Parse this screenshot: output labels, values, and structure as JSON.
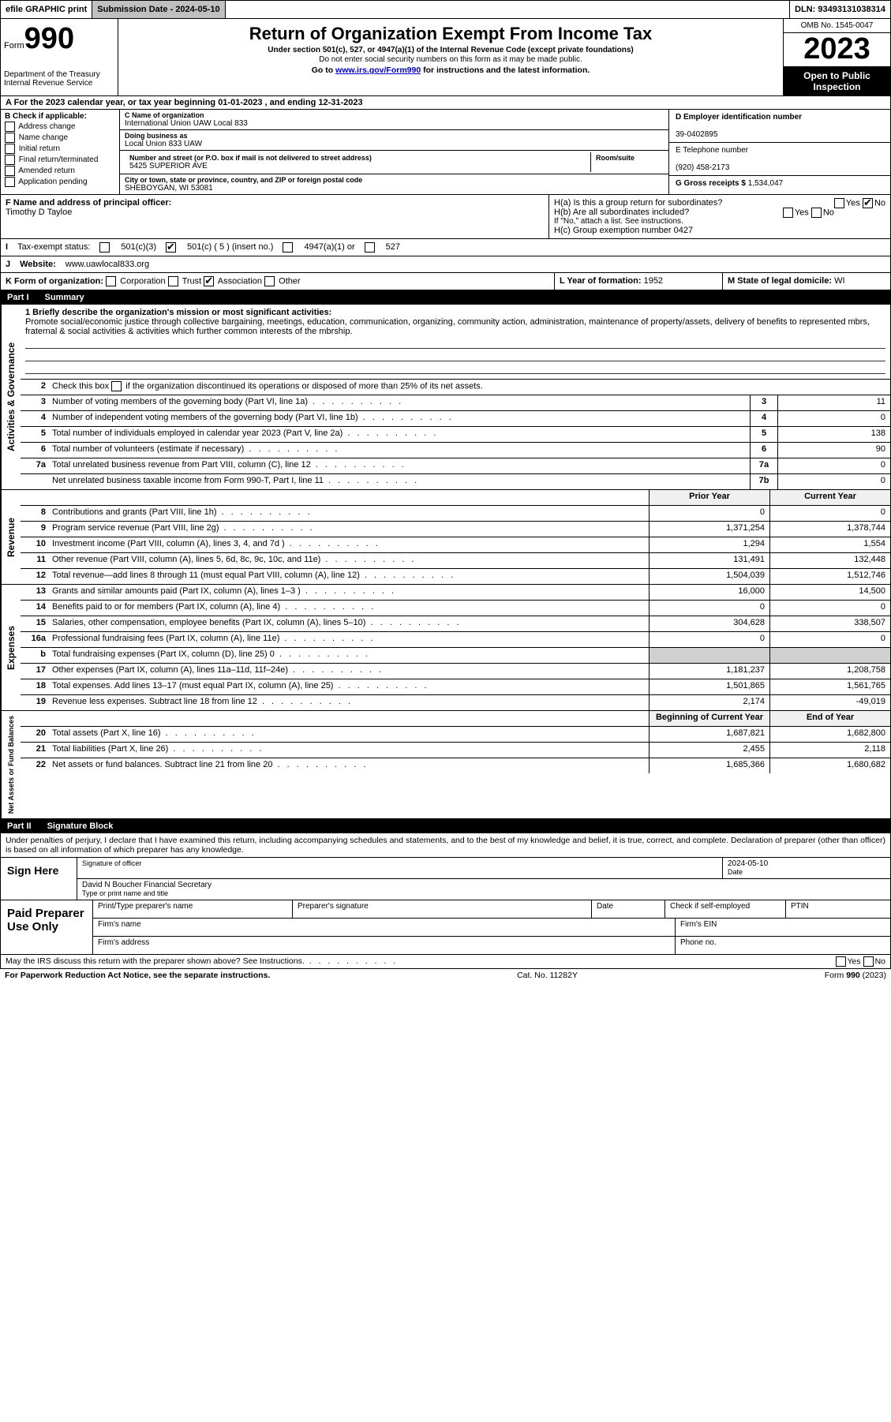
{
  "topbar": {
    "efile": "efile GRAPHIC print",
    "submission_label": "Submission Date - 2024-05-10",
    "dln": "DLN: 93493131038314"
  },
  "header": {
    "form_label": "Form",
    "form_number": "990",
    "title": "Return of Organization Exempt From Income Tax",
    "sub1": "Under section 501(c), 527, or 4947(a)(1) of the Internal Revenue Code (except private foundations)",
    "sub2": "Do not enter social security numbers on this form as it may be made public.",
    "sub3_pre": "Go to ",
    "sub3_link": "www.irs.gov/Form990",
    "sub3_post": " for instructions and the latest information.",
    "dept": "Department of the Treasury\nInternal Revenue Service",
    "omb": "OMB No. 1545-0047",
    "year": "2023",
    "inspection": "Open to Public Inspection"
  },
  "lineA": "A For the 2023 calendar year, or tax year beginning 01-01-2023   , and ending 12-31-2023",
  "boxB": {
    "title": "B Check if applicable:",
    "items": [
      "Address change",
      "Name change",
      "Initial return",
      "Final return/terminated",
      "Amended return",
      "Application pending"
    ]
  },
  "boxC": {
    "name_label": "C Name of organization",
    "name": "International Union UAW Local 833",
    "dba_label": "Doing business as",
    "dba": "Local Union 833 UAW",
    "street_label": "Number and street (or P.O. box if mail is not delivered to street address)",
    "room_label": "Room/suite",
    "street": "5425 SUPERIOR AVE",
    "city_label": "City or town, state or province, country, and ZIP or foreign postal code",
    "city": "SHEBOYGAN, WI  53081"
  },
  "boxD": {
    "ein_label": "D Employer identification number",
    "ein": "39-0402895",
    "phone_label": "E Telephone number",
    "phone": "(920) 458-2173",
    "gross_label": "G Gross receipts $",
    "gross": "1,534,047"
  },
  "boxF": {
    "label": "F Name and address of principal officer:",
    "name": "Timothy D Tayloe"
  },
  "boxH": {
    "a": "H(a)  Is this a group return for subordinates?",
    "b": "H(b)  Are all subordinates included?",
    "b_note": "If \"No,\" attach a list. See instructions.",
    "c_label": "H(c)  Group exemption number ",
    "c_val": "0427",
    "yes": "Yes",
    "no": "No"
  },
  "boxI": {
    "label": "Tax-exempt status:",
    "opts": [
      "501(c)(3)",
      "501(c) ( 5 ) (insert no.)",
      "4947(a)(1) or",
      "527"
    ]
  },
  "boxJ": {
    "label": "Website:",
    "value": "www.uawlocal833.org"
  },
  "boxK": {
    "label": "K Form of organization:",
    "opts": [
      "Corporation",
      "Trust",
      "Association",
      "Other"
    ]
  },
  "boxL": {
    "label": "L Year of formation:",
    "value": "1952"
  },
  "boxM": {
    "label": "M State of legal domicile:",
    "value": "WI"
  },
  "partI": {
    "num": "Part I",
    "title": "Summary"
  },
  "summary": {
    "mission_label": "1   Briefly describe the organization's mission or most significant activities:",
    "mission": "Promote social/economic justice through collective bargaining, meetings, education, communication, organizing, community action, administration, maintenance of property/assets, delivery of benefits to represented mbrs, fraternal & social activities & activities which further common interests of the mbrship.",
    "line2": "Check this box       if the organization discontinued its operations or disposed of more than 25% of its net assets.",
    "lines_simple": [
      {
        "n": "3",
        "d": "Number of voting members of the governing body (Part VI, line 1a)",
        "box": "3",
        "v": "11"
      },
      {
        "n": "4",
        "d": "Number of independent voting members of the governing body (Part VI, line 1b)",
        "box": "4",
        "v": "0"
      },
      {
        "n": "5",
        "d": "Total number of individuals employed in calendar year 2023 (Part V, line 2a)",
        "box": "5",
        "v": "138"
      },
      {
        "n": "6",
        "d": "Total number of volunteers (estimate if necessary)",
        "box": "6",
        "v": "90"
      },
      {
        "n": "7a",
        "d": "Total unrelated business revenue from Part VIII, column (C), line 12",
        "box": "7a",
        "v": "0"
      },
      {
        "n": "",
        "d": "Net unrelated business taxable income from Form 990-T, Part I, line 11",
        "box": "7b",
        "v": "0"
      }
    ],
    "col_prior": "Prior Year",
    "col_current": "Current Year",
    "revenue": [
      {
        "n": "8",
        "d": "Contributions and grants (Part VIII, line 1h)",
        "p": "0",
        "c": "0"
      },
      {
        "n": "9",
        "d": "Program service revenue (Part VIII, line 2g)",
        "p": "1,371,254",
        "c": "1,378,744"
      },
      {
        "n": "10",
        "d": "Investment income (Part VIII, column (A), lines 3, 4, and 7d )",
        "p": "1,294",
        "c": "1,554"
      },
      {
        "n": "11",
        "d": "Other revenue (Part VIII, column (A), lines 5, 6d, 8c, 9c, 10c, and 11e)",
        "p": "131,491",
        "c": "132,448"
      },
      {
        "n": "12",
        "d": "Total revenue—add lines 8 through 11 (must equal Part VIII, column (A), line 12)",
        "p": "1,504,039",
        "c": "1,512,746"
      }
    ],
    "expenses": [
      {
        "n": "13",
        "d": "Grants and similar amounts paid (Part IX, column (A), lines 1–3 )",
        "p": "16,000",
        "c": "14,500"
      },
      {
        "n": "14",
        "d": "Benefits paid to or for members (Part IX, column (A), line 4)",
        "p": "0",
        "c": "0"
      },
      {
        "n": "15",
        "d": "Salaries, other compensation, employee benefits (Part IX, column (A), lines 5–10)",
        "p": "304,628",
        "c": "338,507"
      },
      {
        "n": "16a",
        "d": "Professional fundraising fees (Part IX, column (A), line 11e)",
        "p": "0",
        "c": "0"
      },
      {
        "n": "b",
        "d": "Total fundraising expenses (Part IX, column (D), line 25) 0",
        "p": "",
        "c": "",
        "shaded": true
      },
      {
        "n": "17",
        "d": "Other expenses (Part IX, column (A), lines 11a–11d, 11f–24e)",
        "p": "1,181,237",
        "c": "1,208,758"
      },
      {
        "n": "18",
        "d": "Total expenses. Add lines 13–17 (must equal Part IX, column (A), line 25)",
        "p": "1,501,865",
        "c": "1,561,765"
      },
      {
        "n": "19",
        "d": "Revenue less expenses. Subtract line 18 from line 12",
        "p": "2,174",
        "c": "-49,019"
      }
    ],
    "col_begin": "Beginning of Current Year",
    "col_end": "End of Year",
    "netassets": [
      {
        "n": "20",
        "d": "Total assets (Part X, line 16)",
        "p": "1,687,821",
        "c": "1,682,800"
      },
      {
        "n": "21",
        "d": "Total liabilities (Part X, line 26)",
        "p": "2,455",
        "c": "2,118"
      },
      {
        "n": "22",
        "d": "Net assets or fund balances. Subtract line 21 from line 20",
        "p": "1,685,366",
        "c": "1,680,682"
      }
    ],
    "side_labels": {
      "gov": "Activities & Governance",
      "rev": "Revenue",
      "exp": "Expenses",
      "net": "Net Assets or Fund Balances"
    }
  },
  "partII": {
    "num": "Part II",
    "title": "Signature Block",
    "perjury": "Under penalties of perjury, I declare that I have examined this return, including accompanying schedules and statements, and to the best of my knowledge and belief, it is true, correct, and complete. Declaration of preparer (other than officer) is based on all information of which preparer has any knowledge."
  },
  "sign": {
    "here": "Sign Here",
    "sig_label": "Signature of officer",
    "date_label": "Date",
    "date_val": "2024-05-10",
    "name": "David N Boucher  Financial Secretary",
    "name_label": "Type or print name and title"
  },
  "preparer": {
    "title": "Paid Preparer Use Only",
    "cols": [
      "Print/Type preparer's name",
      "Preparer's signature",
      "Date"
    ],
    "check_label": "Check        if self-employed",
    "ptin": "PTIN",
    "firm_name": "Firm's name",
    "firm_ein": "Firm's EIN",
    "firm_addr": "Firm's address",
    "phone": "Phone no."
  },
  "footer": {
    "discuss": "May the IRS discuss this return with the preparer shown above? See Instructions.",
    "yes": "Yes",
    "no": "No",
    "paperwork": "For Paperwork Reduction Act Notice, see the separate instructions.",
    "cat": "Cat. No. 11282Y",
    "form": "Form 990 (2023)"
  }
}
